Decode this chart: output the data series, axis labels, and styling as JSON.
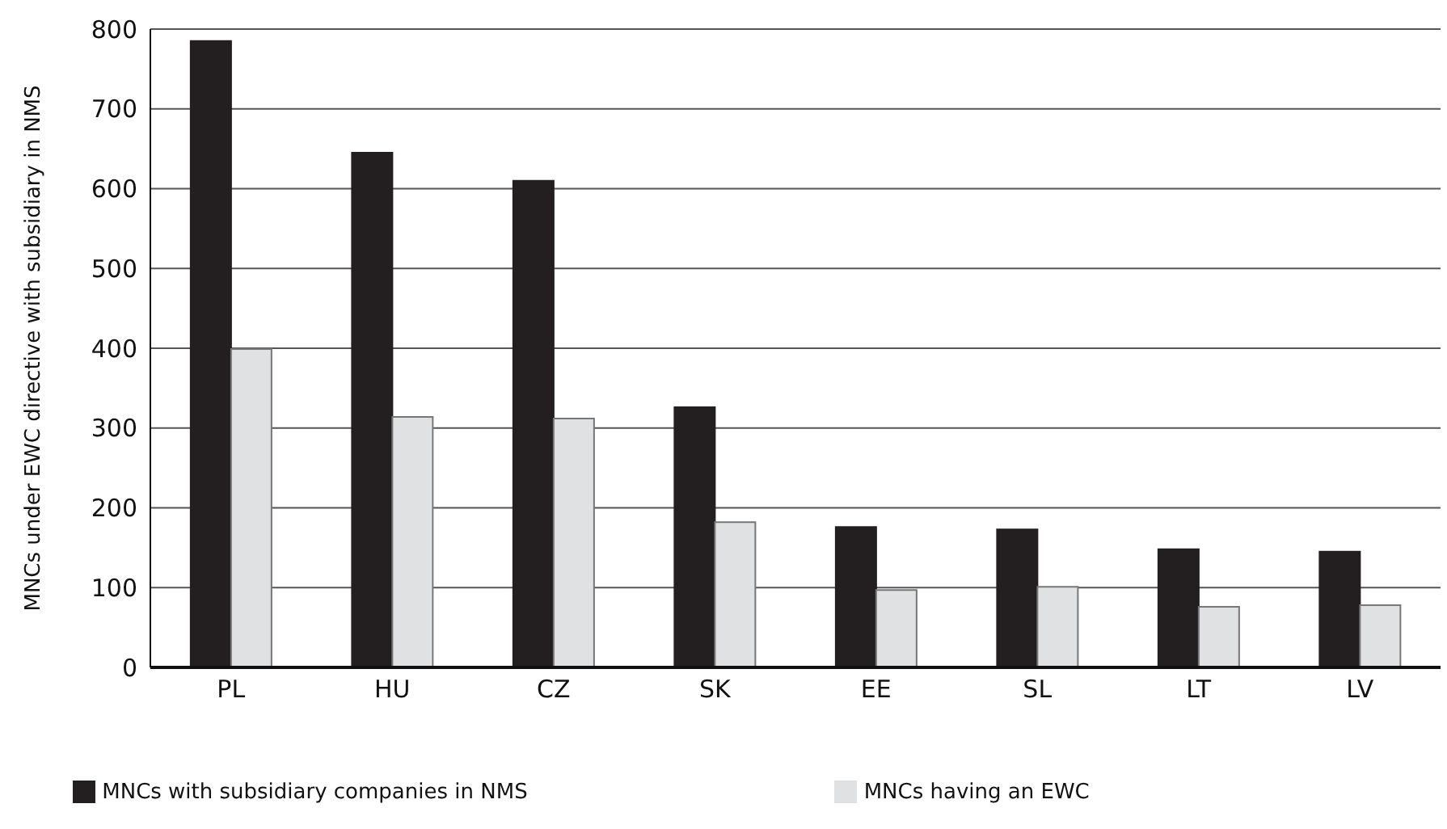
{
  "chart_data": {
    "type": "bar",
    "ylabel": "MNCs under EWC directive with subsidiary in NMS",
    "categories": [
      "PL",
      "HU",
      "CZ",
      "SK",
      "EE",
      "SL",
      "LT",
      "LV"
    ],
    "series": [
      {
        "name": "MNCs with subsidiary companies in NMS",
        "color": "#231f20",
        "values": [
          785,
          645,
          610,
          326,
          176,
          173,
          148,
          145
        ]
      },
      {
        "name": "MNCs having an EWC",
        "color": "#e0e1e3",
        "values": [
          399,
          314,
          312,
          182,
          97,
          101,
          76,
          78
        ]
      }
    ],
    "ylim": [
      0,
      800
    ],
    "yticks": [
      0,
      100,
      200,
      300,
      400,
      500,
      600,
      700,
      800
    ],
    "grid": "y",
    "legend": "bottom"
  }
}
